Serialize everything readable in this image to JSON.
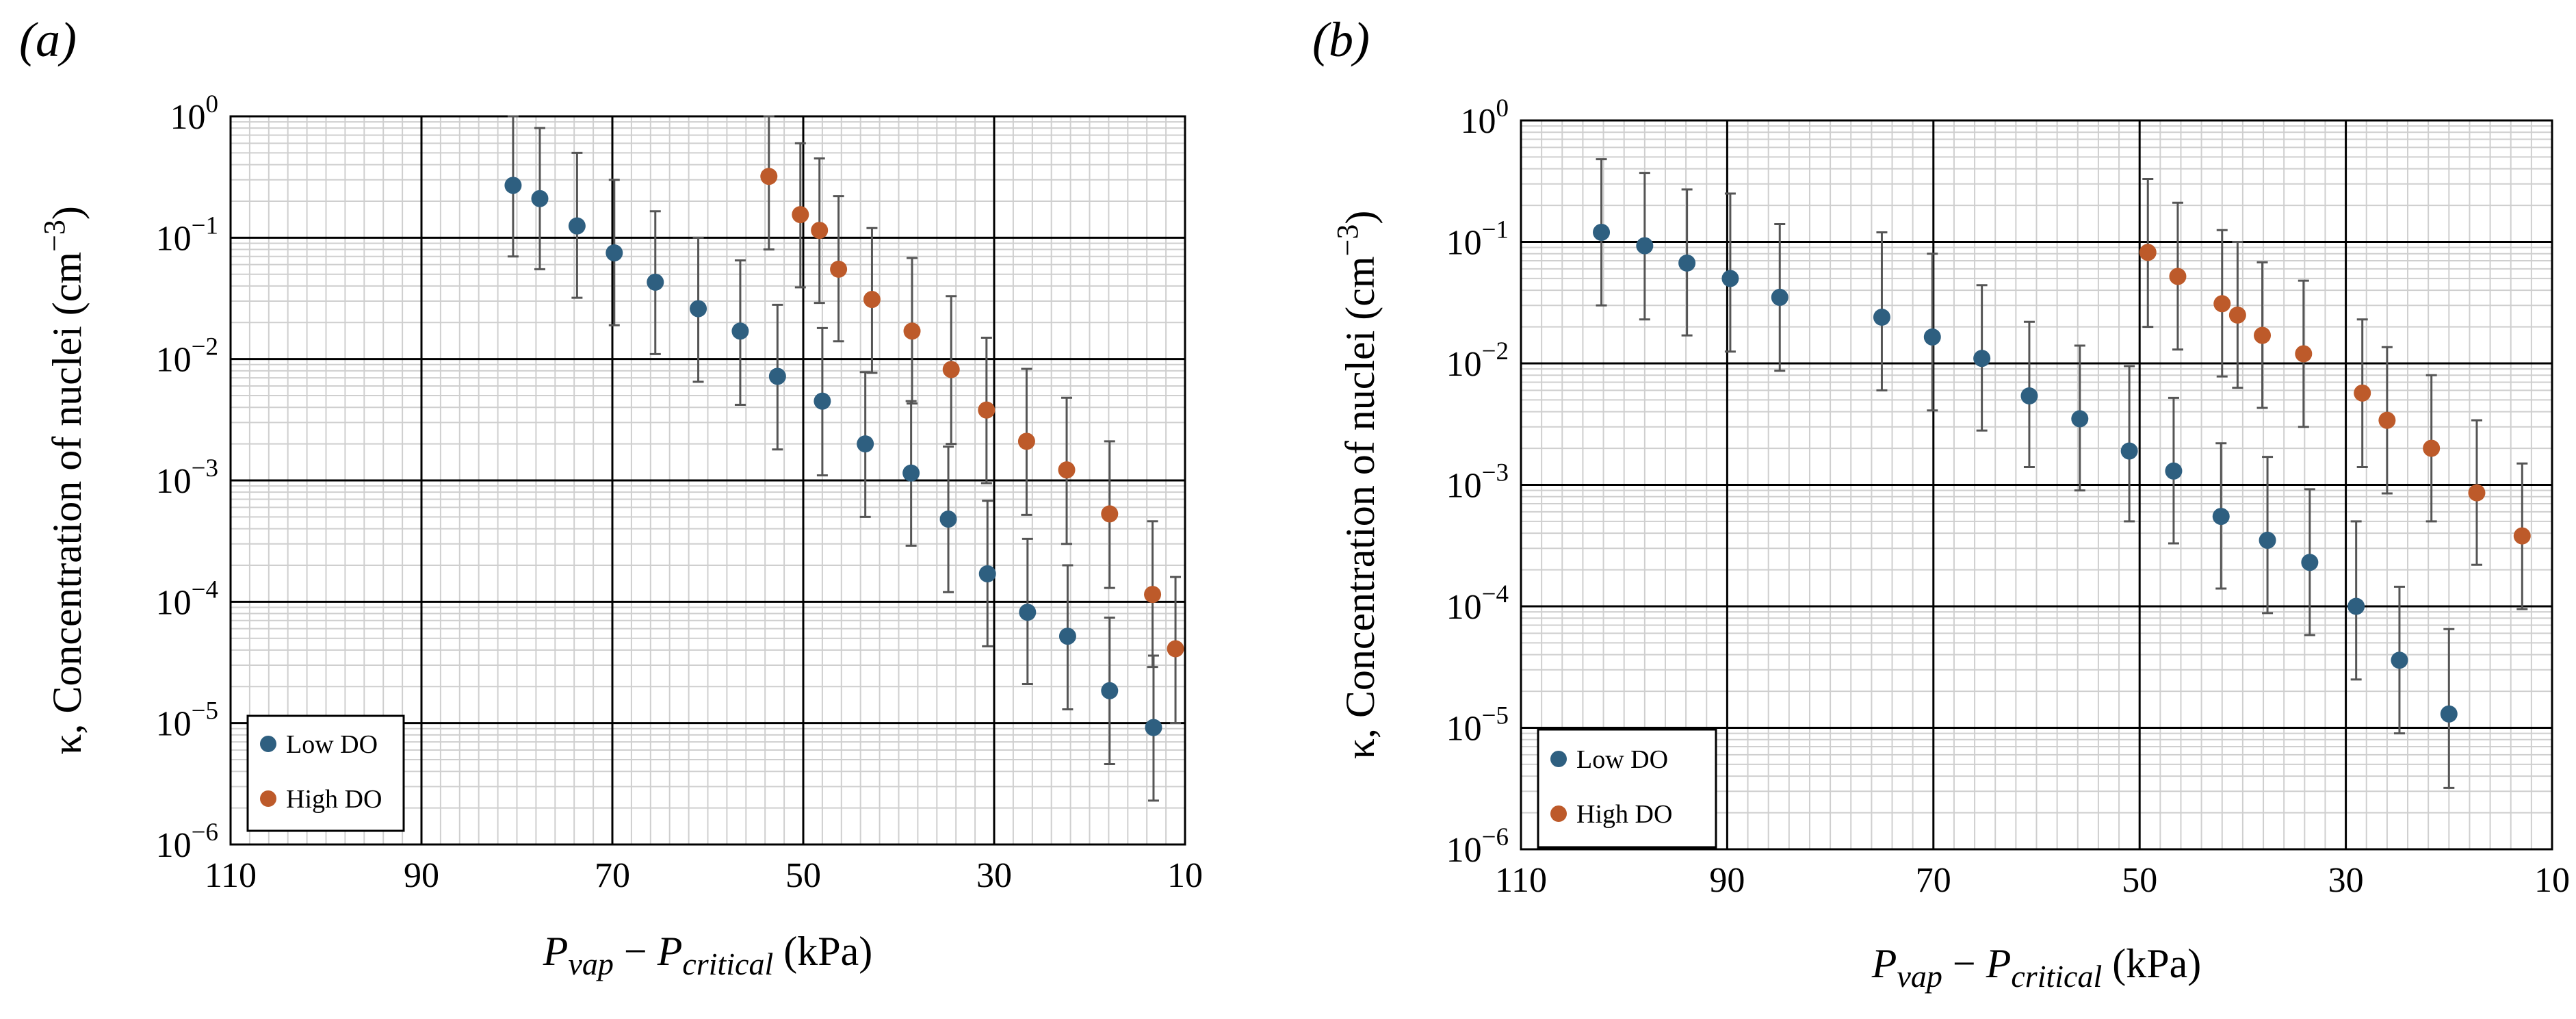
{
  "panels": [
    {
      "panel_label": "(a)",
      "xlabel": {
        "main": "P",
        "sub1": "vap",
        "minus": " − ",
        "main2": "P",
        "sub2": "critical",
        "unit": " (kPa)"
      },
      "ylabel": {
        "prefix": "κ, Concentration of nuclei (cm",
        "sup": "−3",
        "suffix": ")"
      },
      "legend": [
        "Low DO",
        "High DO"
      ]
    },
    {
      "panel_label": "(b)",
      "xlabel": {
        "main": "P",
        "sub1": "vap",
        "minus": " − ",
        "main2": "P",
        "sub2": "critical",
        "unit": " (kPa)"
      },
      "ylabel": {
        "prefix": "κ, Concentration of nuclei (cm",
        "sup": "−3",
        "suffix": ")"
      },
      "legend": [
        "Low DO",
        "High DO"
      ]
    }
  ],
  "colors": {
    "low_do": "#2e5f80",
    "high_do": "#bd5a2a",
    "error_bar": "#555555"
  },
  "chart_data": [
    {
      "type": "scatter",
      "title": "",
      "xlabel": "P_vap − P_critical (kPa)",
      "ylabel": "κ, Concentration of nuclei (cm^-3)",
      "xlim": [
        110,
        10
      ],
      "x_reversed": true,
      "yscale": "log",
      "ylim": [
        1e-06,
        1
      ],
      "xticks": [
        110,
        90,
        70,
        50,
        30,
        10
      ],
      "yticks": [
        {
          "value": 1e-06,
          "label": "10",
          "exp": "−6"
        },
        {
          "value": 1e-05,
          "label": "10",
          "exp": "−5"
        },
        {
          "value": 0.0001,
          "label": "10",
          "exp": "−4"
        },
        {
          "value": 0.001,
          "label": "10",
          "exp": "−3"
        },
        {
          "value": 0.01,
          "label": "10",
          "exp": "−2"
        },
        {
          "value": 0.1,
          "label": "10",
          "exp": "−1"
        },
        {
          "value": 1,
          "label": "10",
          "exp": "0"
        }
      ],
      "grid": true,
      "legend_position": "bottom-left",
      "series": [
        {
          "name": "Low DO",
          "color": "#2e5f80",
          "points": [
            {
              "x": 80.4,
              "y": 0.27,
              "lo": 0.07,
              "hi": 1.0
            },
            {
              "x": 77.6,
              "y": 0.21,
              "lo": 0.055,
              "hi": 0.8
            },
            {
              "x": 73.7,
              "y": 0.125,
              "lo": 0.032,
              "hi": 0.5
            },
            {
              "x": 69.8,
              "y": 0.075,
              "lo": 0.019,
              "hi": 0.3
            },
            {
              "x": 65.5,
              "y": 0.043,
              "lo": 0.011,
              "hi": 0.165
            },
            {
              "x": 61.0,
              "y": 0.026,
              "lo": 0.0065,
              "hi": 0.1
            },
            {
              "x": 56.6,
              "y": 0.017,
              "lo": 0.0042,
              "hi": 0.065
            },
            {
              "x": 52.7,
              "y": 0.0072,
              "lo": 0.0018,
              "hi": 0.028
            },
            {
              "x": 48.0,
              "y": 0.0045,
              "lo": 0.0011,
              "hi": 0.018
            },
            {
              "x": 43.5,
              "y": 0.002,
              "lo": 0.0005,
              "hi": 0.0078
            },
            {
              "x": 38.7,
              "y": 0.00115,
              "lo": 0.00029,
              "hi": 0.0045
            },
            {
              "x": 34.8,
              "y": 0.00048,
              "lo": 0.00012,
              "hi": 0.0019
            },
            {
              "x": 30.7,
              "y": 0.00017,
              "lo": 4.3e-05,
              "hi": 0.00068
            },
            {
              "x": 26.5,
              "y": 8.2e-05,
              "lo": 2.1e-05,
              "hi": 0.00033
            },
            {
              "x": 22.3,
              "y": 5.2e-05,
              "lo": 1.3e-05,
              "hi": 0.0002
            },
            {
              "x": 17.9,
              "y": 1.85e-05,
              "lo": 4.6e-06,
              "hi": 7.4e-05
            },
            {
              "x": 13.3,
              "y": 9.2e-06,
              "lo": 2.3e-06,
              "hi": 3.6e-05
            }
          ]
        },
        {
          "name": "High DO",
          "color": "#bd5a2a",
          "points": [
            {
              "x": 53.6,
              "y": 0.32,
              "lo": 0.08,
              "hi": 1.0
            },
            {
              "x": 50.3,
              "y": 0.155,
              "lo": 0.039,
              "hi": 0.6
            },
            {
              "x": 48.3,
              "y": 0.115,
              "lo": 0.029,
              "hi": 0.45
            },
            {
              "x": 46.3,
              "y": 0.055,
              "lo": 0.014,
              "hi": 0.22
            },
            {
              "x": 42.8,
              "y": 0.031,
              "lo": 0.0077,
              "hi": 0.12
            },
            {
              "x": 38.6,
              "y": 0.017,
              "lo": 0.0043,
              "hi": 0.068
            },
            {
              "x": 34.5,
              "y": 0.0082,
              "lo": 0.002,
              "hi": 0.033
            },
            {
              "x": 30.8,
              "y": 0.0038,
              "lo": 0.00095,
              "hi": 0.015
            },
            {
              "x": 26.6,
              "y": 0.0021,
              "lo": 0.00052,
              "hi": 0.0083
            },
            {
              "x": 22.4,
              "y": 0.00122,
              "lo": 0.0003,
              "hi": 0.0048
            },
            {
              "x": 17.9,
              "y": 0.00053,
              "lo": 0.00013,
              "hi": 0.0021
            },
            {
              "x": 13.4,
              "y": 0.000115,
              "lo": 2.9e-05,
              "hi": 0.00046
            },
            {
              "x": 11.0,
              "y": 4.1e-05,
              "lo": 1e-05,
              "hi": 0.00016
            }
          ]
        }
      ]
    },
    {
      "type": "scatter",
      "title": "",
      "xlabel": "P_vap − P_critical (kPa)",
      "ylabel": "κ, Concentration of nuclei (cm^-3)",
      "xlim": [
        110,
        10
      ],
      "x_reversed": true,
      "yscale": "log",
      "ylim": [
        1e-06,
        1
      ],
      "xticks": [
        110,
        90,
        70,
        50,
        30,
        10
      ],
      "yticks": [
        {
          "value": 1e-06,
          "label": "10",
          "exp": "−6"
        },
        {
          "value": 1e-05,
          "label": "10",
          "exp": "−5"
        },
        {
          "value": 0.0001,
          "label": "10",
          "exp": "−4"
        },
        {
          "value": 0.001,
          "label": "10",
          "exp": "−3"
        },
        {
          "value": 0.01,
          "label": "10",
          "exp": "−2"
        },
        {
          "value": 0.1,
          "label": "10",
          "exp": "−1"
        },
        {
          "value": 1,
          "label": "10",
          "exp": "0"
        }
      ],
      "grid": true,
      "legend_position": "bottom-left",
      "series": [
        {
          "name": "Low DO",
          "color": "#2e5f80",
          "points": [
            {
              "x": 102.2,
              "y": 0.12,
              "lo": 0.03,
              "hi": 0.48
            },
            {
              "x": 98.0,
              "y": 0.093,
              "lo": 0.023,
              "hi": 0.37
            },
            {
              "x": 93.9,
              "y": 0.067,
              "lo": 0.017,
              "hi": 0.27
            },
            {
              "x": 89.7,
              "y": 0.05,
              "lo": 0.0125,
              "hi": 0.25
            },
            {
              "x": 84.9,
              "y": 0.035,
              "lo": 0.0087,
              "hi": 0.14
            },
            {
              "x": 75.0,
              "y": 0.024,
              "lo": 0.006,
              "hi": 0.12
            },
            {
              "x": 70.1,
              "y": 0.0165,
              "lo": 0.0041,
              "hi": 0.08
            },
            {
              "x": 65.3,
              "y": 0.011,
              "lo": 0.0028,
              "hi": 0.044
            },
            {
              "x": 60.7,
              "y": 0.0054,
              "lo": 0.0014,
              "hi": 0.022
            },
            {
              "x": 55.8,
              "y": 0.0035,
              "lo": 0.0009,
              "hi": 0.014
            },
            {
              "x": 51.0,
              "y": 0.0019,
              "lo": 0.0005,
              "hi": 0.0095
            },
            {
              "x": 46.7,
              "y": 0.0013,
              "lo": 0.00033,
              "hi": 0.0052
            },
            {
              "x": 42.1,
              "y": 0.00055,
              "lo": 0.00014,
              "hi": 0.0022
            },
            {
              "x": 37.6,
              "y": 0.00035,
              "lo": 8.8e-05,
              "hi": 0.0017
            },
            {
              "x": 33.5,
              "y": 0.00023,
              "lo": 5.8e-05,
              "hi": 0.00092
            },
            {
              "x": 29.0,
              "y": 0.0001,
              "lo": 2.5e-05,
              "hi": 0.0005
            },
            {
              "x": 24.8,
              "y": 3.6e-05,
              "lo": 9e-06,
              "hi": 0.000145
            },
            {
              "x": 20.0,
              "y": 1.3e-05,
              "lo": 3.2e-06,
              "hi": 6.5e-05
            }
          ]
        },
        {
          "name": "High DO",
          "color": "#bd5a2a",
          "points": [
            {
              "x": 49.2,
              "y": 0.082,
              "lo": 0.02,
              "hi": 0.33
            },
            {
              "x": 46.3,
              "y": 0.052,
              "lo": 0.013,
              "hi": 0.21
            },
            {
              "x": 42.0,
              "y": 0.031,
              "lo": 0.0078,
              "hi": 0.125
            },
            {
              "x": 40.5,
              "y": 0.025,
              "lo": 0.0063,
              "hi": 0.1
            },
            {
              "x": 38.1,
              "y": 0.017,
              "lo": 0.0043,
              "hi": 0.068
            },
            {
              "x": 34.1,
              "y": 0.012,
              "lo": 0.003,
              "hi": 0.048
            },
            {
              "x": 28.4,
              "y": 0.0057,
              "lo": 0.0014,
              "hi": 0.023
            },
            {
              "x": 26.0,
              "y": 0.0034,
              "lo": 0.00085,
              "hi": 0.0136
            },
            {
              "x": 21.7,
              "y": 0.002,
              "lo": 0.0005,
              "hi": 0.008
            },
            {
              "x": 17.3,
              "y": 0.00086,
              "lo": 0.00022,
              "hi": 0.0034
            },
            {
              "x": 12.9,
              "y": 0.00038,
              "lo": 9.5e-05,
              "hi": 0.0015
            }
          ]
        }
      ]
    }
  ]
}
